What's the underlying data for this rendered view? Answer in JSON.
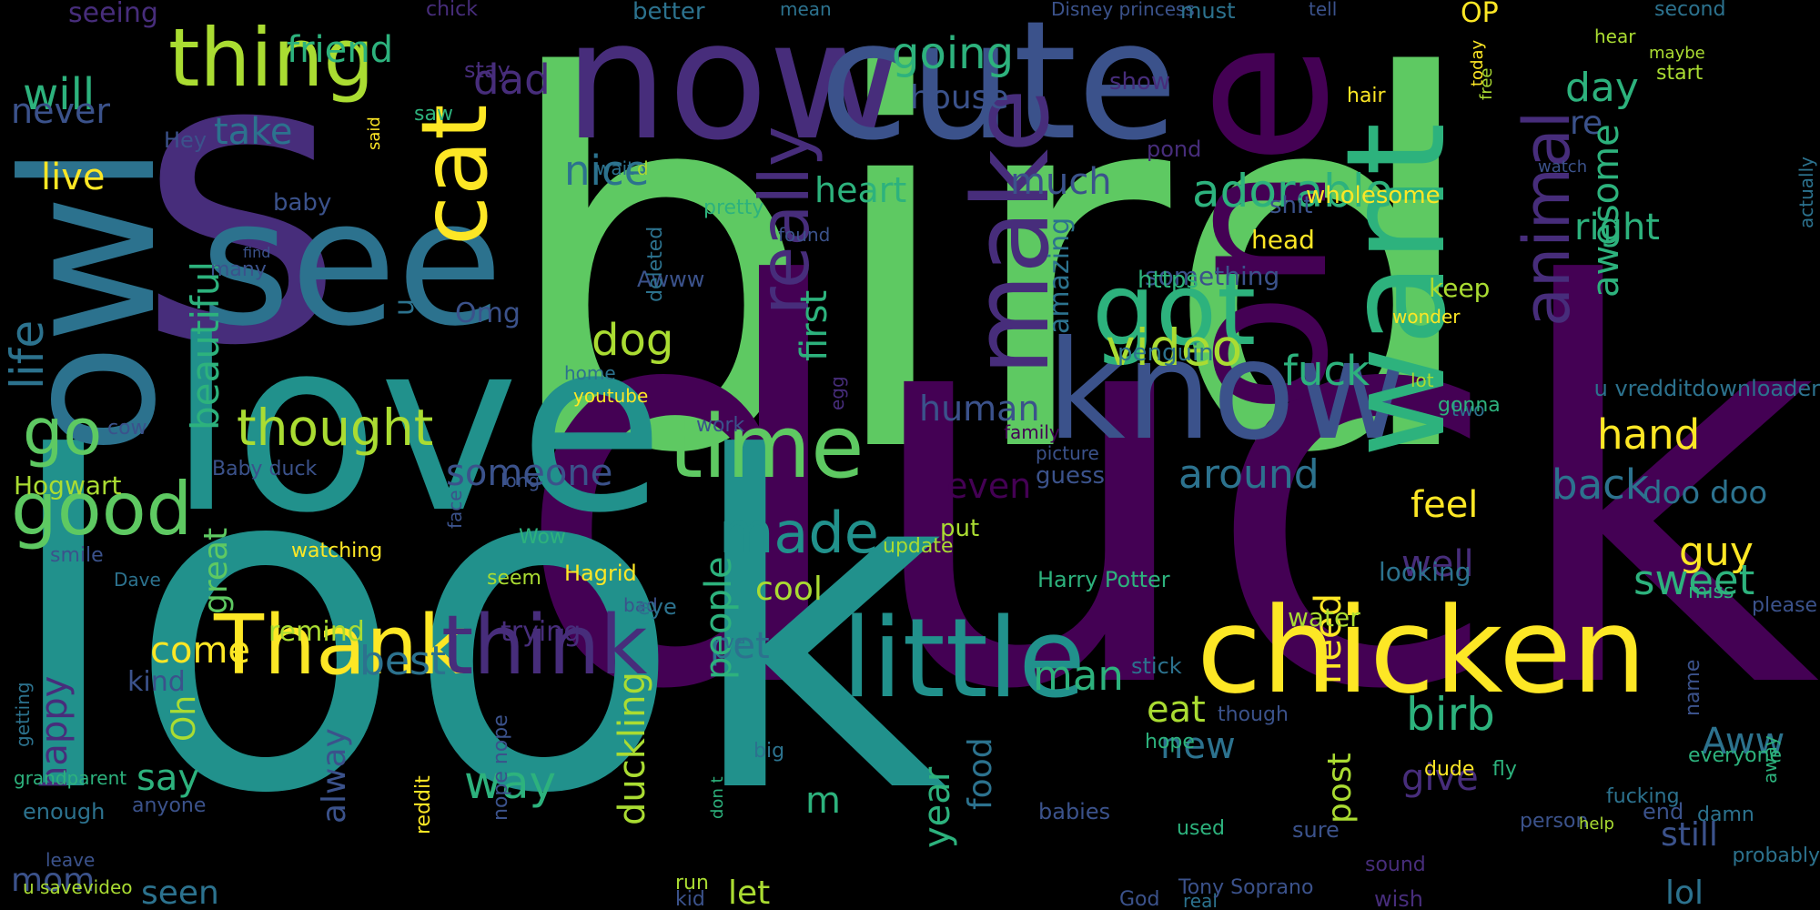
{
  "colors": {
    "background": "#000000",
    "palette": {
      "yellow": "#FDE725",
      "lightgreen": "#AADC32",
      "green": "#5EC962",
      "teal": "#2DB27D",
      "cyan": "#21918C",
      "steel": "#2C728E",
      "blue": "#3B528B",
      "indigo": "#472D7B",
      "purple": "#440154"
    }
  },
  "words": [
    {
      "text": "bird",
      "color": "green"
    },
    {
      "text": "duck",
      "color": "purple"
    },
    {
      "text": "look",
      "color": "cyan"
    },
    {
      "text": "s",
      "color": "indigo"
    },
    {
      "text": "love",
      "color": "cyan"
    },
    {
      "text": "now",
      "color": "indigo"
    },
    {
      "text": "cute",
      "color": "blue"
    },
    {
      "text": "one",
      "color": "purple"
    },
    {
      "text": "owl",
      "color": "steel"
    },
    {
      "text": "see",
      "color": "steel"
    },
    {
      "text": "know",
      "color": "blue"
    },
    {
      "text": "want",
      "color": "teal"
    },
    {
      "text": "chicken",
      "color": "yellow"
    },
    {
      "text": "little",
      "color": "cyan"
    },
    {
      "text": "time",
      "color": "green"
    },
    {
      "text": "got",
      "color": "teal"
    },
    {
      "text": "make",
      "color": "indigo"
    },
    {
      "text": "cat",
      "color": "yellow"
    },
    {
      "text": "thing",
      "color": "lightgreen"
    },
    {
      "text": "Thank",
      "color": "yellow"
    },
    {
      "text": "think",
      "color": "indigo"
    },
    {
      "text": "good",
      "color": "green"
    },
    {
      "text": "made",
      "color": "cyan"
    },
    {
      "text": "go",
      "color": "green"
    },
    {
      "text": "animal",
      "color": "indigo"
    },
    {
      "text": "really",
      "color": "indigo"
    },
    {
      "text": "thought",
      "color": "lightgreen"
    },
    {
      "text": "video",
      "color": "lightgreen"
    },
    {
      "text": "adorable",
      "color": "teal"
    },
    {
      "text": "going",
      "color": "teal"
    },
    {
      "text": "will",
      "color": "teal"
    },
    {
      "text": "never",
      "color": "blue"
    },
    {
      "text": "dad",
      "color": "indigo"
    },
    {
      "text": "friend",
      "color": "teal"
    },
    {
      "text": "day",
      "color": "teal"
    },
    {
      "text": "re",
      "color": "blue"
    },
    {
      "text": "take",
      "color": "steel"
    },
    {
      "text": "house",
      "color": "blue"
    },
    {
      "text": "live",
      "color": "yellow"
    },
    {
      "text": "nice",
      "color": "steel"
    },
    {
      "text": "heart",
      "color": "teal"
    },
    {
      "text": "much",
      "color": "blue"
    },
    {
      "text": "right",
      "color": "teal"
    },
    {
      "text": "awesome",
      "color": "teal"
    },
    {
      "text": "beautiful",
      "color": "teal"
    },
    {
      "text": "dog",
      "color": "lightgreen"
    },
    {
      "text": "first",
      "color": "teal"
    },
    {
      "text": "amazing",
      "color": "steel"
    },
    {
      "text": "fuck",
      "color": "teal"
    },
    {
      "text": "human",
      "color": "blue"
    },
    {
      "text": "hand",
      "color": "yellow"
    },
    {
      "text": "back",
      "color": "steel"
    },
    {
      "text": "around",
      "color": "steel"
    },
    {
      "text": "someone",
      "color": "blue"
    },
    {
      "text": "even",
      "color": "purple"
    },
    {
      "text": "feel",
      "color": "yellow"
    },
    {
      "text": "doo doo",
      "color": "steel"
    },
    {
      "text": "guy",
      "color": "yellow"
    },
    {
      "text": "well",
      "color": "indigo"
    },
    {
      "text": "sweet",
      "color": "teal"
    },
    {
      "text": "life",
      "color": "steel"
    },
    {
      "text": "Omg",
      "color": "blue"
    },
    {
      "text": "u",
      "color": "steel"
    },
    {
      "text": "come",
      "color": "yellow"
    },
    {
      "text": "remind",
      "color": "lightgreen"
    },
    {
      "text": "best",
      "color": "steel"
    },
    {
      "text": "Oh",
      "color": "lightgreen"
    },
    {
      "text": "happy",
      "color": "indigo"
    },
    {
      "text": "great",
      "color": "green"
    },
    {
      "text": "cool",
      "color": "lightgreen"
    },
    {
      "text": "pet",
      "color": "steel"
    },
    {
      "text": "duckling",
      "color": "lightgreen"
    },
    {
      "text": "people",
      "color": "teal"
    },
    {
      "text": "man",
      "color": "teal"
    },
    {
      "text": "eat",
      "color": "lightgreen"
    },
    {
      "text": "need",
      "color": "yellow"
    },
    {
      "text": "birb",
      "color": "teal"
    },
    {
      "text": "give",
      "color": "indigo"
    },
    {
      "text": "Aww",
      "color": "steel"
    },
    {
      "text": "new",
      "color": "steel"
    },
    {
      "text": "way",
      "color": "teal"
    },
    {
      "text": "say",
      "color": "teal"
    },
    {
      "text": "alway",
      "color": "blue"
    },
    {
      "text": "m",
      "color": "teal"
    },
    {
      "text": "year",
      "color": "teal"
    },
    {
      "text": "food",
      "color": "steel"
    },
    {
      "text": "post",
      "color": "lightgreen"
    },
    {
      "text": "mom",
      "color": "blue"
    },
    {
      "text": "seen",
      "color": "steel"
    },
    {
      "text": "let",
      "color": "lightgreen"
    },
    {
      "text": "still",
      "color": "blue"
    },
    {
      "text": "lol",
      "color": "steel"
    },
    {
      "text": "kind",
      "color": "blue"
    },
    {
      "text": "trying",
      "color": "indigo"
    },
    {
      "text": "water",
      "color": "lightgreen"
    },
    {
      "text": "Hogwart",
      "color": "lightgreen"
    },
    {
      "text": "Hagrid",
      "color": "yellow"
    },
    {
      "text": "Harry Potter",
      "color": "teal"
    },
    {
      "text": "looking",
      "color": "steel"
    },
    {
      "text": "penguin",
      "color": "steel"
    },
    {
      "text": "something",
      "color": "blue"
    },
    {
      "text": "keep",
      "color": "lightgreen"
    },
    {
      "text": "head",
      "color": "yellow"
    },
    {
      "text": "shit",
      "color": "blue"
    },
    {
      "text": "wholesome",
      "color": "yellow"
    },
    {
      "text": "watch",
      "color": "blue"
    },
    {
      "text": "https",
      "color": "teal"
    },
    {
      "text": "baby",
      "color": "blue"
    },
    {
      "text": "Awww",
      "color": "blue"
    },
    {
      "text": "deleted",
      "color": "steel"
    },
    {
      "text": "home",
      "color": "steel"
    },
    {
      "text": "youtube",
      "color": "yellow"
    },
    {
      "text": "wonder",
      "color": "yellow"
    },
    {
      "text": "lot",
      "color": "lightgreen"
    },
    {
      "text": "two",
      "color": "steel"
    },
    {
      "text": "gonna",
      "color": "teal"
    },
    {
      "text": "u vredditdownloader",
      "color": "steel"
    },
    {
      "text": "actually",
      "color": "steel"
    },
    {
      "text": "away",
      "color": "teal"
    },
    {
      "text": "miss",
      "color": "teal"
    },
    {
      "text": "please",
      "color": "blue"
    },
    {
      "text": "name",
      "color": "blue"
    },
    {
      "text": "everyone",
      "color": "teal"
    },
    {
      "text": "probably",
      "color": "steel"
    },
    {
      "text": "end",
      "color": "blue"
    },
    {
      "text": "person",
      "color": "blue"
    },
    {
      "text": "help",
      "color": "lightgreen"
    },
    {
      "text": "damn",
      "color": "steel"
    },
    {
      "text": "fucking",
      "color": "steel"
    },
    {
      "text": "fly",
      "color": "teal"
    },
    {
      "text": "dude",
      "color": "yellow"
    },
    {
      "text": "stick",
      "color": "steel"
    },
    {
      "text": "though",
      "color": "blue"
    },
    {
      "text": "hope",
      "color": "teal"
    },
    {
      "text": "used",
      "color": "teal"
    },
    {
      "text": "babies",
      "color": "blue"
    },
    {
      "text": "sure",
      "color": "blue"
    },
    {
      "text": "sound",
      "color": "indigo"
    },
    {
      "text": "wish",
      "color": "indigo"
    },
    {
      "text": "real",
      "color": "steel"
    },
    {
      "text": "Tony Soprano",
      "color": "blue"
    },
    {
      "text": "God",
      "color": "blue"
    },
    {
      "text": "kid",
      "color": "blue"
    },
    {
      "text": "run",
      "color": "lightgreen"
    },
    {
      "text": "don t",
      "color": "teal"
    },
    {
      "text": "nope nope",
      "color": "blue"
    },
    {
      "text": "big",
      "color": "steel"
    },
    {
      "text": "ve",
      "color": "steel"
    },
    {
      "text": "bad",
      "color": "blue"
    },
    {
      "text": "eye",
      "color": "steel"
    },
    {
      "text": "seem",
      "color": "lightgreen"
    },
    {
      "text": "Wow",
      "color": "teal"
    },
    {
      "text": "update",
      "color": "lightgreen"
    },
    {
      "text": "put",
      "color": "lightgreen"
    },
    {
      "text": "picture",
      "color": "blue"
    },
    {
      "text": "family",
      "color": "purple"
    },
    {
      "text": "guess",
      "color": "blue"
    },
    {
      "text": "work",
      "color": "blue"
    },
    {
      "text": "egg",
      "color": "indigo"
    },
    {
      "text": "face",
      "color": "blue"
    },
    {
      "text": "long",
      "color": "blue"
    },
    {
      "text": "Baby duck",
      "color": "blue"
    },
    {
      "text": "cow",
      "color": "blue"
    },
    {
      "text": "watching",
      "color": "yellow"
    },
    {
      "text": "smile",
      "color": "blue"
    },
    {
      "text": "Dave",
      "color": "steel"
    },
    {
      "text": "getting",
      "color": "steel"
    },
    {
      "text": "grandparent",
      "color": "teal"
    },
    {
      "text": "enough",
      "color": "steel"
    },
    {
      "text": "anyone",
      "color": "blue"
    },
    {
      "text": "reddit",
      "color": "yellow"
    },
    {
      "text": "leave",
      "color": "blue"
    },
    {
      "text": "u savevideo",
      "color": "lightgreen"
    },
    {
      "text": "seeing",
      "color": "indigo"
    },
    {
      "text": "chick",
      "color": "indigo"
    },
    {
      "text": "better",
      "color": "steel"
    },
    {
      "text": "mean",
      "color": "steel"
    },
    {
      "text": "Disney princess",
      "color": "blue"
    },
    {
      "text": "must",
      "color": "steel"
    },
    {
      "text": "tell",
      "color": "blue"
    },
    {
      "text": "OP",
      "color": "yellow"
    },
    {
      "text": "hear",
      "color": "lightgreen"
    },
    {
      "text": "second",
      "color": "steel"
    },
    {
      "text": "maybe",
      "color": "lightgreen"
    },
    {
      "text": "start",
      "color": "lightgreen"
    },
    {
      "text": "stay",
      "color": "indigo"
    },
    {
      "text": "saw",
      "color": "teal"
    },
    {
      "text": "Hey",
      "color": "blue"
    },
    {
      "text": "said",
      "color": "yellow"
    },
    {
      "text": "show",
      "color": "indigo"
    },
    {
      "text": "pond",
      "color": "indigo"
    },
    {
      "text": "hair",
      "color": "yellow"
    },
    {
      "text": "today",
      "color": "yellow"
    },
    {
      "text": "free",
      "color": "lightgreen"
    },
    {
      "text": "wait",
      "color": "steel"
    },
    {
      "text": "d",
      "color": "lightgreen"
    },
    {
      "text": "pretty",
      "color": "teal"
    },
    {
      "text": "found",
      "color": "blue"
    },
    {
      "text": "find",
      "color": "blue"
    },
    {
      "text": "many",
      "color": "blue"
    }
  ]
}
